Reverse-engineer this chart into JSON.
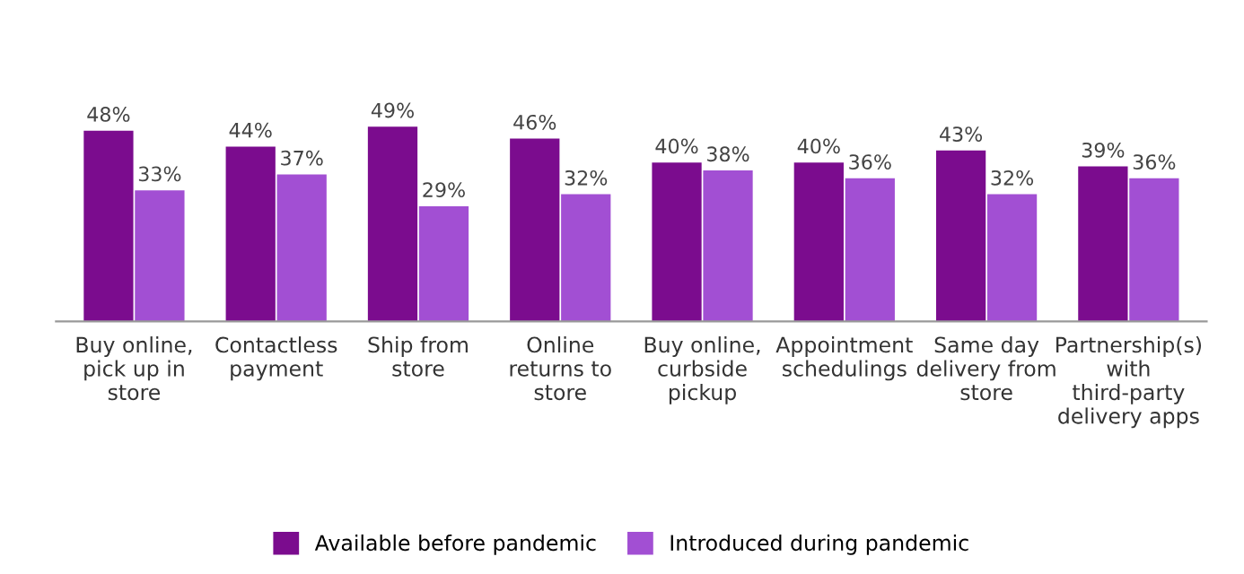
{
  "chart_data": {
    "type": "bar",
    "categories": [
      "Buy online,\npick up in\nstore",
      "Contactless\npayment",
      "Ship from\nstore",
      "Online\nreturns to\nstore",
      "Buy online,\ncurbside\npickup",
      "Appointment\nschedulings",
      "Same day\ndelivery from\nstore",
      "Partnership(s)\nwith\nthird-party\ndelivery apps"
    ],
    "series": [
      {
        "name": "Available before pandemic",
        "color": "#7b0c8e",
        "values": [
          48,
          44,
          49,
          46,
          40,
          40,
          43,
          39
        ],
        "value_labels": [
          "48%",
          "44%",
          "49%",
          "46%",
          "40%",
          "40%",
          "43%",
          "39%"
        ]
      },
      {
        "name": "Introduced during pandemic",
        "color": "#a24fd3",
        "values": [
          33,
          37,
          29,
          32,
          38,
          36,
          32,
          36
        ],
        "value_labels": [
          "33%",
          "37%",
          "29%",
          "32%",
          "38%",
          "36%",
          "32%",
          "36%"
        ]
      }
    ],
    "legend": "bottom",
    "grid": false
  }
}
